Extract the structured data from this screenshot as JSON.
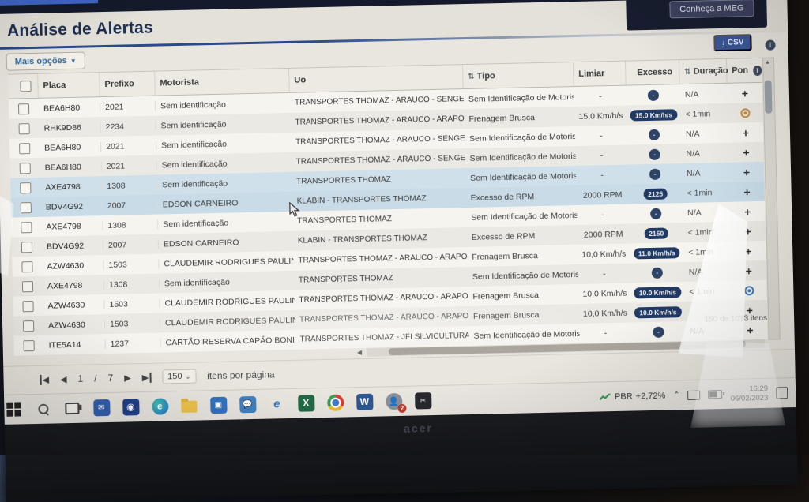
{
  "chrome": {
    "meg_button": "Conheça a MEG"
  },
  "page": {
    "title": "Análise de Alertas",
    "more_options_label": "Mais opções",
    "csv_label": "CSV"
  },
  "table": {
    "columns": {
      "placa": "Placa",
      "prefixo": "Prefixo",
      "motorista": "Motorista",
      "uo": "Uo",
      "tipo": "Tipo",
      "limiar": "Limiar",
      "excesso": "Excesso",
      "duracao": "Duração",
      "pon": "Pon"
    },
    "sort_icon": "⇅",
    "rows": [
      {
        "placa": "BEA6H80",
        "prefixo": "2021",
        "motorista": "Sem identificação",
        "uo": "TRANSPORTES THOMAZ - ARAUCO - SENGES",
        "tipo": "Sem Identificação de Motorista",
        "limiar": "-",
        "excesso": "-",
        "excesso_style": "dot",
        "duracao": "N/A",
        "badge": "plus",
        "highlight": false
      },
      {
        "placa": "RHK9D86",
        "prefixo": "2234",
        "motorista": "Sem identificação",
        "uo": "TRANSPORTES THOMAZ - ARAUCO - ARAPOTI",
        "tipo": "Frenagem Brusca",
        "limiar": "15,0 Km/h/s",
        "excesso": "15.0 Km/h/s",
        "excesso_style": "pill",
        "duracao": "< 1min",
        "badge": "target-orange",
        "highlight": false
      },
      {
        "placa": "BEA6H80",
        "prefixo": "2021",
        "motorista": "Sem identificação",
        "uo": "TRANSPORTES THOMAZ - ARAUCO - SENGES",
        "tipo": "Sem Identificação de Motorista",
        "limiar": "-",
        "excesso": "-",
        "excesso_style": "dot",
        "duracao": "N/A",
        "badge": "plus",
        "highlight": false
      },
      {
        "placa": "BEA6H80",
        "prefixo": "2021",
        "motorista": "Sem identificação",
        "uo": "TRANSPORTES THOMAZ - ARAUCO - SENGES",
        "tipo": "Sem Identificação de Motorista",
        "limiar": "-",
        "excesso": "-",
        "excesso_style": "dot",
        "duracao": "N/A",
        "badge": "plus",
        "highlight": false
      },
      {
        "placa": "AXE4798",
        "prefixo": "1308",
        "motorista": "Sem identificação",
        "uo": "TRANSPORTES THOMAZ",
        "tipo": "Sem Identificação de Motorista",
        "limiar": "-",
        "excesso": "-",
        "excesso_style": "dot",
        "duracao": "N/A",
        "badge": "plus",
        "highlight": true
      },
      {
        "placa": "BDV4G92",
        "prefixo": "2007",
        "motorista": "EDSON CARNEIRO",
        "uo": "KLABIN - TRANSPORTES THOMAZ",
        "tipo": "Excesso de RPM",
        "limiar": "2000 RPM",
        "excesso": "2125",
        "excesso_style": "pill",
        "duracao": "< 1min",
        "badge": "plus",
        "highlight": true
      },
      {
        "placa": "AXE4798",
        "prefixo": "1308",
        "motorista": "Sem identificação",
        "uo": "TRANSPORTES THOMAZ",
        "tipo": "Sem Identificação de Motorista",
        "limiar": "-",
        "excesso": "-",
        "excesso_style": "dot",
        "duracao": "N/A",
        "badge": "plus",
        "highlight": false
      },
      {
        "placa": "BDV4G92",
        "prefixo": "2007",
        "motorista": "EDSON CARNEIRO",
        "uo": "KLABIN - TRANSPORTES THOMAZ",
        "tipo": "Excesso de RPM",
        "limiar": "2000 RPM",
        "excesso": "2150",
        "excesso_style": "pill",
        "duracao": "< 1min",
        "badge": "plus",
        "highlight": false
      },
      {
        "placa": "AZW4630",
        "prefixo": "1503",
        "motorista": "CLAUDEMIR RODRIGUES PAULIN",
        "uo": "TRANSPORTES THOMAZ - ARAUCO - ARAPOTI",
        "tipo": "Frenagem Brusca",
        "limiar": "10,0 Km/h/s",
        "excesso": "11.0 Km/h/s",
        "excesso_style": "pill",
        "duracao": "< 1min",
        "badge": "plus",
        "highlight": false
      },
      {
        "placa": "AXE4798",
        "prefixo": "1308",
        "motorista": "Sem identificação",
        "uo": "TRANSPORTES THOMAZ",
        "tipo": "Sem Identificação de Motorista",
        "limiar": "-",
        "excesso": "-",
        "excesso_style": "dot",
        "duracao": "N/A",
        "badge": "plus",
        "highlight": false
      },
      {
        "placa": "AZW4630",
        "prefixo": "1503",
        "motorista": "CLAUDEMIR RODRIGUES PAULIN",
        "uo": "TRANSPORTES THOMAZ - ARAUCO - ARAPOTI",
        "tipo": "Frenagem Brusca",
        "limiar": "10,0 Km/h/s",
        "excesso": "10.0 Km/h/s",
        "excesso_style": "pill",
        "duracao": "< 1min",
        "badge": "target-blue",
        "highlight": false
      },
      {
        "placa": "AZW4630",
        "prefixo": "1503",
        "motorista": "CLAUDEMIR RODRIGUES PAULIN",
        "uo": "TRANSPORTES THOMAZ - ARAUCO - ARAPOTI",
        "tipo": "Frenagem Brusca",
        "limiar": "10,0 Km/h/s",
        "excesso": "10.0 Km/h/s",
        "excesso_style": "pill",
        "duracao": "",
        "badge": "plus",
        "highlight": false
      },
      {
        "placa": "ITE5A14",
        "prefixo": "1237",
        "motorista": "CARTÃO RESERVA CAPÃO BONIT.",
        "uo": "TRANSPORTES THOMAZ - JFI SILVICULTURA",
        "tipo": "Sem Identificação de Motorista",
        "limiar": "-",
        "excesso": "-",
        "excesso_style": "dot",
        "duracao": "N/A",
        "badge": "plus",
        "highlight": false
      }
    ]
  },
  "footer": {
    "current_page": "1",
    "page_separator": "/",
    "total_pages": "7",
    "page_size": "150",
    "per_page_label": "itens por página",
    "items_count": "150 de 1013 itens"
  },
  "taskbar": {
    "tray": {
      "ticker_symbol": "PBR",
      "ticker_change": "+2,72%",
      "time": "16:29",
      "date": "06/02/2023"
    }
  },
  "laptop": {
    "brand": "acer"
  }
}
